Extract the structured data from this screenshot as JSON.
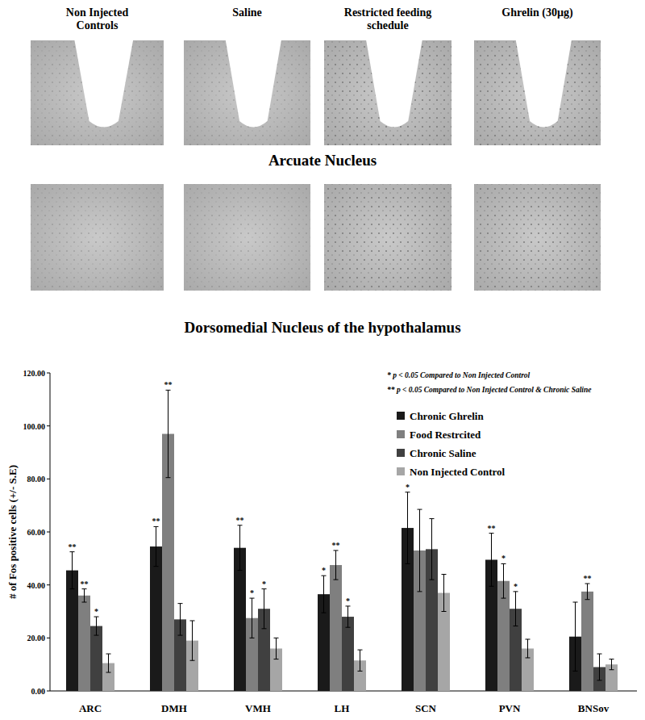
{
  "figure": {
    "column_titles": [
      [
        "Non Injected",
        "Controls"
      ],
      [
        "Saline"
      ],
      [
        "Restricted feeding",
        "schedule"
      ],
      [
        "Ghrelin (30µg)"
      ]
    ],
    "row_captions": [
      "Arcuate Nucleus",
      "Dorsomedial Nucleus of the hypothalamus"
    ]
  },
  "chart_data": {
    "type": "bar",
    "y_label": "# of Fos positive cells (+/- S.E)",
    "annotations": [
      "* p < 0.05 Compared to Non Injected Control",
      "** p < 0.05 Compared to Non Injected Control & Chronic Saline"
    ],
    "categories": [
      "ARC",
      "DMH",
      "VMH",
      "LH",
      "SCN",
      "PVN",
      "BNSov"
    ],
    "series": [
      {
        "name": "Chronic Ghrelin",
        "color": "#1a1a1a",
        "values": [
          45.5,
          54.5,
          54,
          36.5,
          61.5,
          49.5,
          20.5
        ],
        "errors": [
          7,
          7.5,
          8.5,
          7,
          13.5,
          10,
          13
        ],
        "significance": [
          "**",
          "**",
          "**",
          "*",
          "*",
          "**",
          null
        ]
      },
      {
        "name": "Food Restrcited",
        "color": "#7f7f7f",
        "values": [
          36,
          97,
          27.5,
          47.5,
          53,
          41.5,
          37.5
        ],
        "errors": [
          2.5,
          16.5,
          7.5,
          5.5,
          15.5,
          6.5,
          3
        ],
        "significance": [
          "**",
          "**",
          "*",
          "**",
          null,
          "*",
          "**"
        ]
      },
      {
        "name": "Chronic Saline",
        "color": "#404040",
        "values": [
          24.5,
          27,
          31,
          28,
          53.5,
          31,
          9
        ],
        "errors": [
          3.5,
          6,
          7.5,
          4,
          11.5,
          6.5,
          5
        ],
        "significance": [
          "*",
          null,
          "*",
          "*",
          null,
          "*",
          null
        ]
      },
      {
        "name": "Non Injected Control",
        "color": "#a6a6a6",
        "values": [
          10.5,
          19,
          16,
          11.5,
          37,
          16,
          10
        ],
        "errors": [
          3.5,
          7.5,
          4,
          4,
          7,
          3.5,
          2
        ],
        "significance": [
          null,
          null,
          null,
          null,
          null,
          null,
          null
        ]
      }
    ],
    "ylim": [
      0,
      120
    ],
    "yticks": [
      {
        "value": 0,
        "label": "0.00"
      },
      {
        "value": 20,
        "label": "20.00"
      },
      {
        "value": 40,
        "label": "40.00"
      },
      {
        "value": 60,
        "label": "60.00"
      },
      {
        "value": 80,
        "label": "80.00"
      },
      {
        "value": 100,
        "label": "100.00"
      },
      {
        "value": 120,
        "label": "120.00"
      }
    ],
    "grid": false,
    "legend": "upper right"
  }
}
